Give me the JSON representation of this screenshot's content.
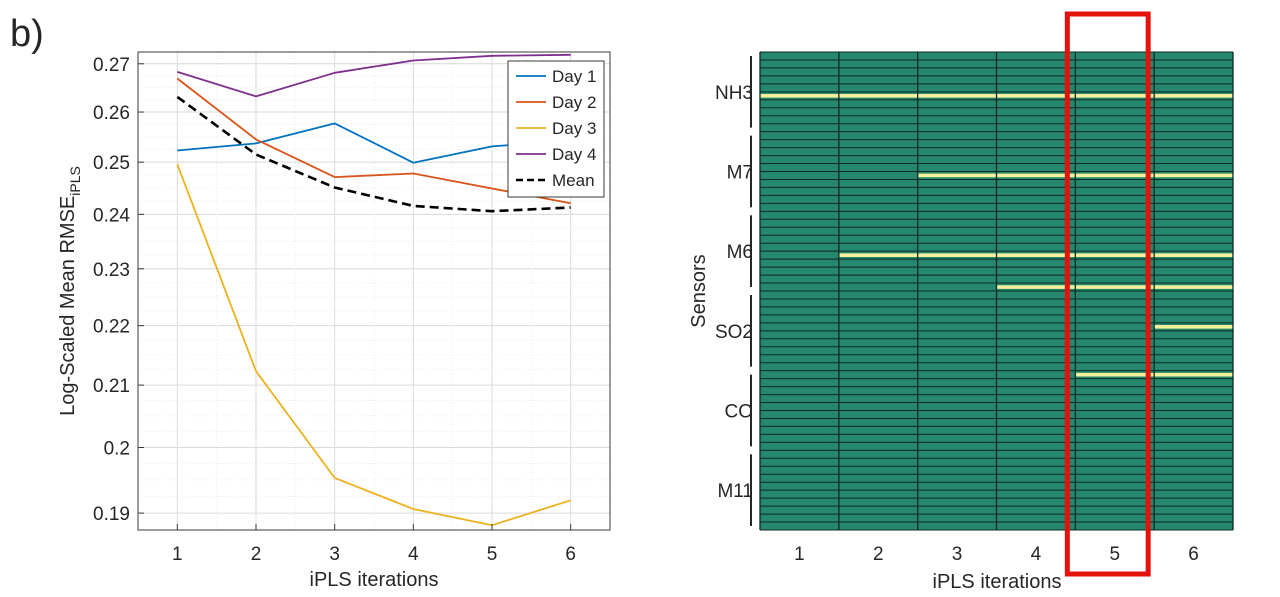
{
  "panel_label": "b)",
  "chart_data": [
    {
      "type": "line",
      "title": "",
      "xlabel": "iPLS iterations",
      "ylabel_main": "Log-Scaled Mean RMSE",
      "ylabel_sub": "iPLS",
      "y_scale": "log",
      "x": [
        1,
        2,
        3,
        4,
        5,
        6
      ],
      "x_ticks": [
        "1",
        "2",
        "3",
        "4",
        "5",
        "6"
      ],
      "xlim": [
        0.5,
        6.5
      ],
      "ylim": [
        0.1875,
        0.2725
      ],
      "y_ticks": [
        "0.19",
        "0.2",
        "0.21",
        "0.22",
        "0.23",
        "0.24",
        "0.25",
        "0.26",
        "0.27"
      ],
      "grid": true,
      "legend_position": "top-right",
      "series": [
        {
          "name": "Day 1",
          "color": "#0072BD",
          "dash": "solid",
          "values": [
            0.2523,
            0.2537,
            0.2577,
            0.2499,
            0.2531,
            0.2543
          ]
        },
        {
          "name": "Day 2",
          "color": "#D95319",
          "dash": "solid",
          "values": [
            0.2669,
            0.2545,
            0.2471,
            0.2478,
            0.2449,
            0.2421
          ]
        },
        {
          "name": "Day 3",
          "color": "#EDB120",
          "dash": "solid",
          "values": [
            0.2496,
            0.2123,
            0.1953,
            0.1906,
            0.1882,
            0.1919
          ]
        },
        {
          "name": "Day 4",
          "color": "#7E2F8E",
          "dash": "solid",
          "values": [
            0.2683,
            0.2632,
            0.2681,
            0.2707,
            0.2717,
            0.2719
          ]
        },
        {
          "name": "Mean",
          "color": "#000000",
          "dash": "dashed",
          "values": [
            0.2631,
            0.2515,
            0.2451,
            0.2416,
            0.2406,
            0.2413
          ]
        }
      ]
    },
    {
      "type": "heatmap",
      "title": "",
      "xlabel": "iPLS iterations",
      "ylabel": "Sensors",
      "x_ticks": [
        "1",
        "2",
        "3",
        "4",
        "5",
        "6"
      ],
      "sensor_groups": [
        "NH3",
        "M7",
        "M6",
        "SO2",
        "CO",
        "M11"
      ],
      "rows_total": 60,
      "base_color": "#24876E",
      "selected_color": "#F5F09A",
      "rowline_color": "#0C2A22",
      "selected_rows": [
        {
          "row": 5,
          "from_iteration": 1
        },
        {
          "row": 15,
          "from_iteration": 3
        },
        {
          "row": 25,
          "from_iteration": 2
        },
        {
          "row": 29,
          "from_iteration": 4
        },
        {
          "row": 34,
          "from_iteration": 6
        },
        {
          "row": 40,
          "from_iteration": 5
        }
      ],
      "highlight_iteration": 5,
      "highlight_color": "#E3120B"
    }
  ]
}
